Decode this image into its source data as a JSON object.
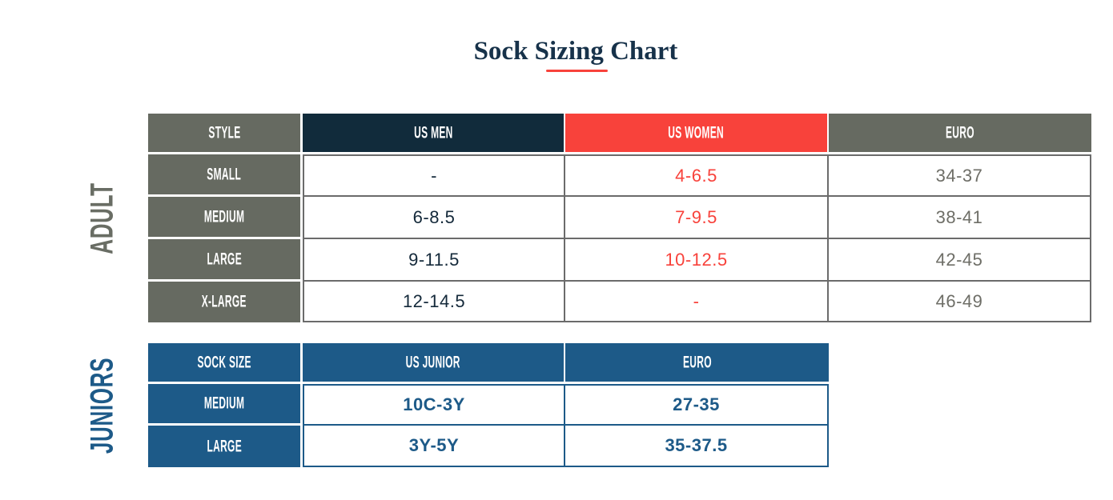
{
  "title": "Sock Sizing Chart",
  "colors": {
    "navy_header": "#112b3b",
    "red_accent": "#f8423b",
    "gray_header": "#666a61",
    "blue_header": "#1d5a88",
    "title_color": "#17324a",
    "adult_border": "#6b6b6b"
  },
  "adult": {
    "side_label": "ADULT",
    "headers": {
      "style": "STYLE",
      "us_men": "US MEN",
      "us_women": "US WOMEN",
      "euro": "EURO"
    },
    "rows": [
      {
        "label": "SMALL",
        "us_men": "-",
        "us_women": "4-6.5",
        "euro": "34-37"
      },
      {
        "label": "MEDIUM",
        "us_men": "6-8.5",
        "us_women": "7-9.5",
        "euro": "38-41"
      },
      {
        "label": "LARGE",
        "us_men": "9-11.5",
        "us_women": "10-12.5",
        "euro": "42-45"
      },
      {
        "label": "X-LARGE",
        "us_men": "12-14.5",
        "us_women": "-",
        "euro": "46-49"
      }
    ]
  },
  "juniors": {
    "side_label": "JUNIORS",
    "headers": {
      "sock_size": "SOCK SIZE",
      "us_junior": "US JUNIOR",
      "euro": "EURO"
    },
    "rows": [
      {
        "label": "MEDIUM",
        "us_junior": "10C-3Y",
        "euro": "27-35"
      },
      {
        "label": "LARGE",
        "us_junior": "3Y-5Y",
        "euro": "35-37.5"
      }
    ]
  },
  "chart_data": [
    {
      "type": "table",
      "title": "Sock Sizing Chart",
      "section": "ADULT",
      "columns": [
        "STYLE",
        "US MEN",
        "US WOMEN",
        "EURO"
      ],
      "rows": [
        [
          "SMALL",
          "-",
          "4-6.5",
          "34-37"
        ],
        [
          "MEDIUM",
          "6-8.5",
          "7-9.5",
          "38-41"
        ],
        [
          "LARGE",
          "9-11.5",
          "10-12.5",
          "42-45"
        ],
        [
          "X-LARGE",
          "12-14.5",
          "-",
          "46-49"
        ]
      ]
    },
    {
      "type": "table",
      "title": "Sock Sizing Chart",
      "section": "JUNIORS",
      "columns": [
        "SOCK SIZE",
        "US JUNIOR",
        "EURO"
      ],
      "rows": [
        [
          "MEDIUM",
          "10C-3Y",
          "27-35"
        ],
        [
          "LARGE",
          "3Y-5Y",
          "35-37.5"
        ]
      ]
    }
  ]
}
